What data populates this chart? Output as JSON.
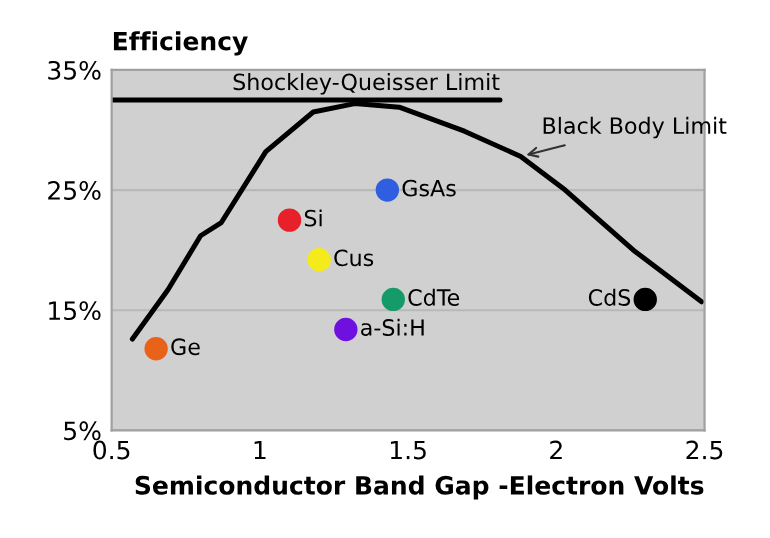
{
  "chart_data": {
    "type": "scatter",
    "ylabel": "Efficiency",
    "xlabel": "Semiconductor Band Gap -Electron Volts",
    "xlim": [
      0.5,
      2.5
    ],
    "xticks": [
      0.5,
      1,
      1.5,
      2,
      2.5
    ],
    "ylim": [
      5,
      35
    ],
    "yticks": [
      {
        "value": 5,
        "label": "5%"
      },
      {
        "value": 15,
        "label": "15%"
      },
      {
        "value": 25,
        "label": "25%"
      },
      {
        "value": 35,
        "label": "35%"
      }
    ],
    "grid": "y",
    "legend": false,
    "series": [
      {
        "name": "Shockley-Queisser Limit",
        "type": "line",
        "marker": "none",
        "color": "#000000",
        "x": [
          0.5,
          1.81
        ],
        "values": [
          32.5,
          32.5
        ]
      },
      {
        "name": "Black Body Limit",
        "type": "line",
        "marker": "none",
        "color": "#000000",
        "x": [
          0.57,
          0.69,
          0.8,
          0.87,
          1.02,
          1.18,
          1.32,
          1.47,
          1.69,
          1.88,
          2.03,
          2.26,
          2.49
        ],
        "values": [
          12.6,
          16.7,
          21.2,
          22.3,
          28.2,
          31.5,
          32.2,
          31.9,
          29.9,
          27.8,
          25.0,
          20.0,
          15.7
        ]
      },
      {
        "name": "Si",
        "marker": "circle",
        "color": "#e8202a",
        "x": [
          1.1
        ],
        "values": [
          22.5
        ]
      },
      {
        "name": "GsAs",
        "marker": "circle",
        "color": "#2f5fe0",
        "x": [
          1.43
        ],
        "values": [
          25.0
        ]
      },
      {
        "name": "Cus",
        "marker": "circle",
        "color": "#f5eb1a",
        "x": [
          1.2
        ],
        "values": [
          19.2
        ]
      },
      {
        "name": "CdTe",
        "marker": "circle",
        "color": "#159a6a",
        "x": [
          1.45
        ],
        "values": [
          15.9
        ]
      },
      {
        "name": "a-Si:H",
        "marker": "circle",
        "color": "#7010e0",
        "x": [
          1.29
        ],
        "values": [
          13.4
        ]
      },
      {
        "name": "Ge",
        "marker": "circle",
        "color": "#e8621a",
        "x": [
          0.65
        ],
        "values": [
          11.8
        ]
      },
      {
        "name": "CdS",
        "marker": "circle",
        "color": "#000000",
        "x": [
          2.3
        ],
        "values": [
          15.9
        ]
      }
    ]
  }
}
